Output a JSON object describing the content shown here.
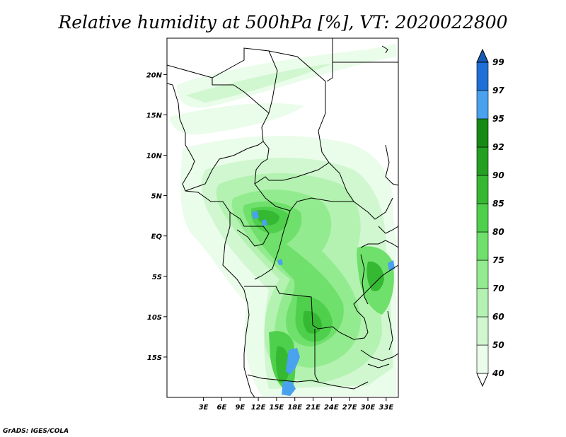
{
  "title": "Relative humidity at 500hPa [%], VT: 2020022800",
  "credit": "GrADS: IGES/COLA",
  "map": {
    "lon_range": [
      -3,
      35
    ],
    "lat_range": [
      -20,
      24.5
    ],
    "lat_labels": [
      "20N",
      "15N",
      "10N",
      "5N",
      "EQ",
      "5S",
      "10S",
      "15S"
    ],
    "lon_labels": [
      "3E",
      "6E",
      "9E",
      "12E",
      "15E",
      "18E",
      "21E",
      "24E",
      "27E",
      "30E",
      "33E"
    ],
    "frame_color": "#000000"
  },
  "colorbar": {
    "levels": [
      "40",
      "50",
      "60",
      "70",
      "75",
      "80",
      "85",
      "90",
      "92",
      "95",
      "97",
      "99"
    ],
    "colors": [
      "#ffffff",
      "#eafcea",
      "#d0f7cf",
      "#b4f2b1",
      "#93eb8f",
      "#6fe06b",
      "#4fd04c",
      "#35b932",
      "#23a021",
      "#178a15",
      "#4aa1ee",
      "#1e6fd6",
      "#155bb5"
    ]
  }
}
